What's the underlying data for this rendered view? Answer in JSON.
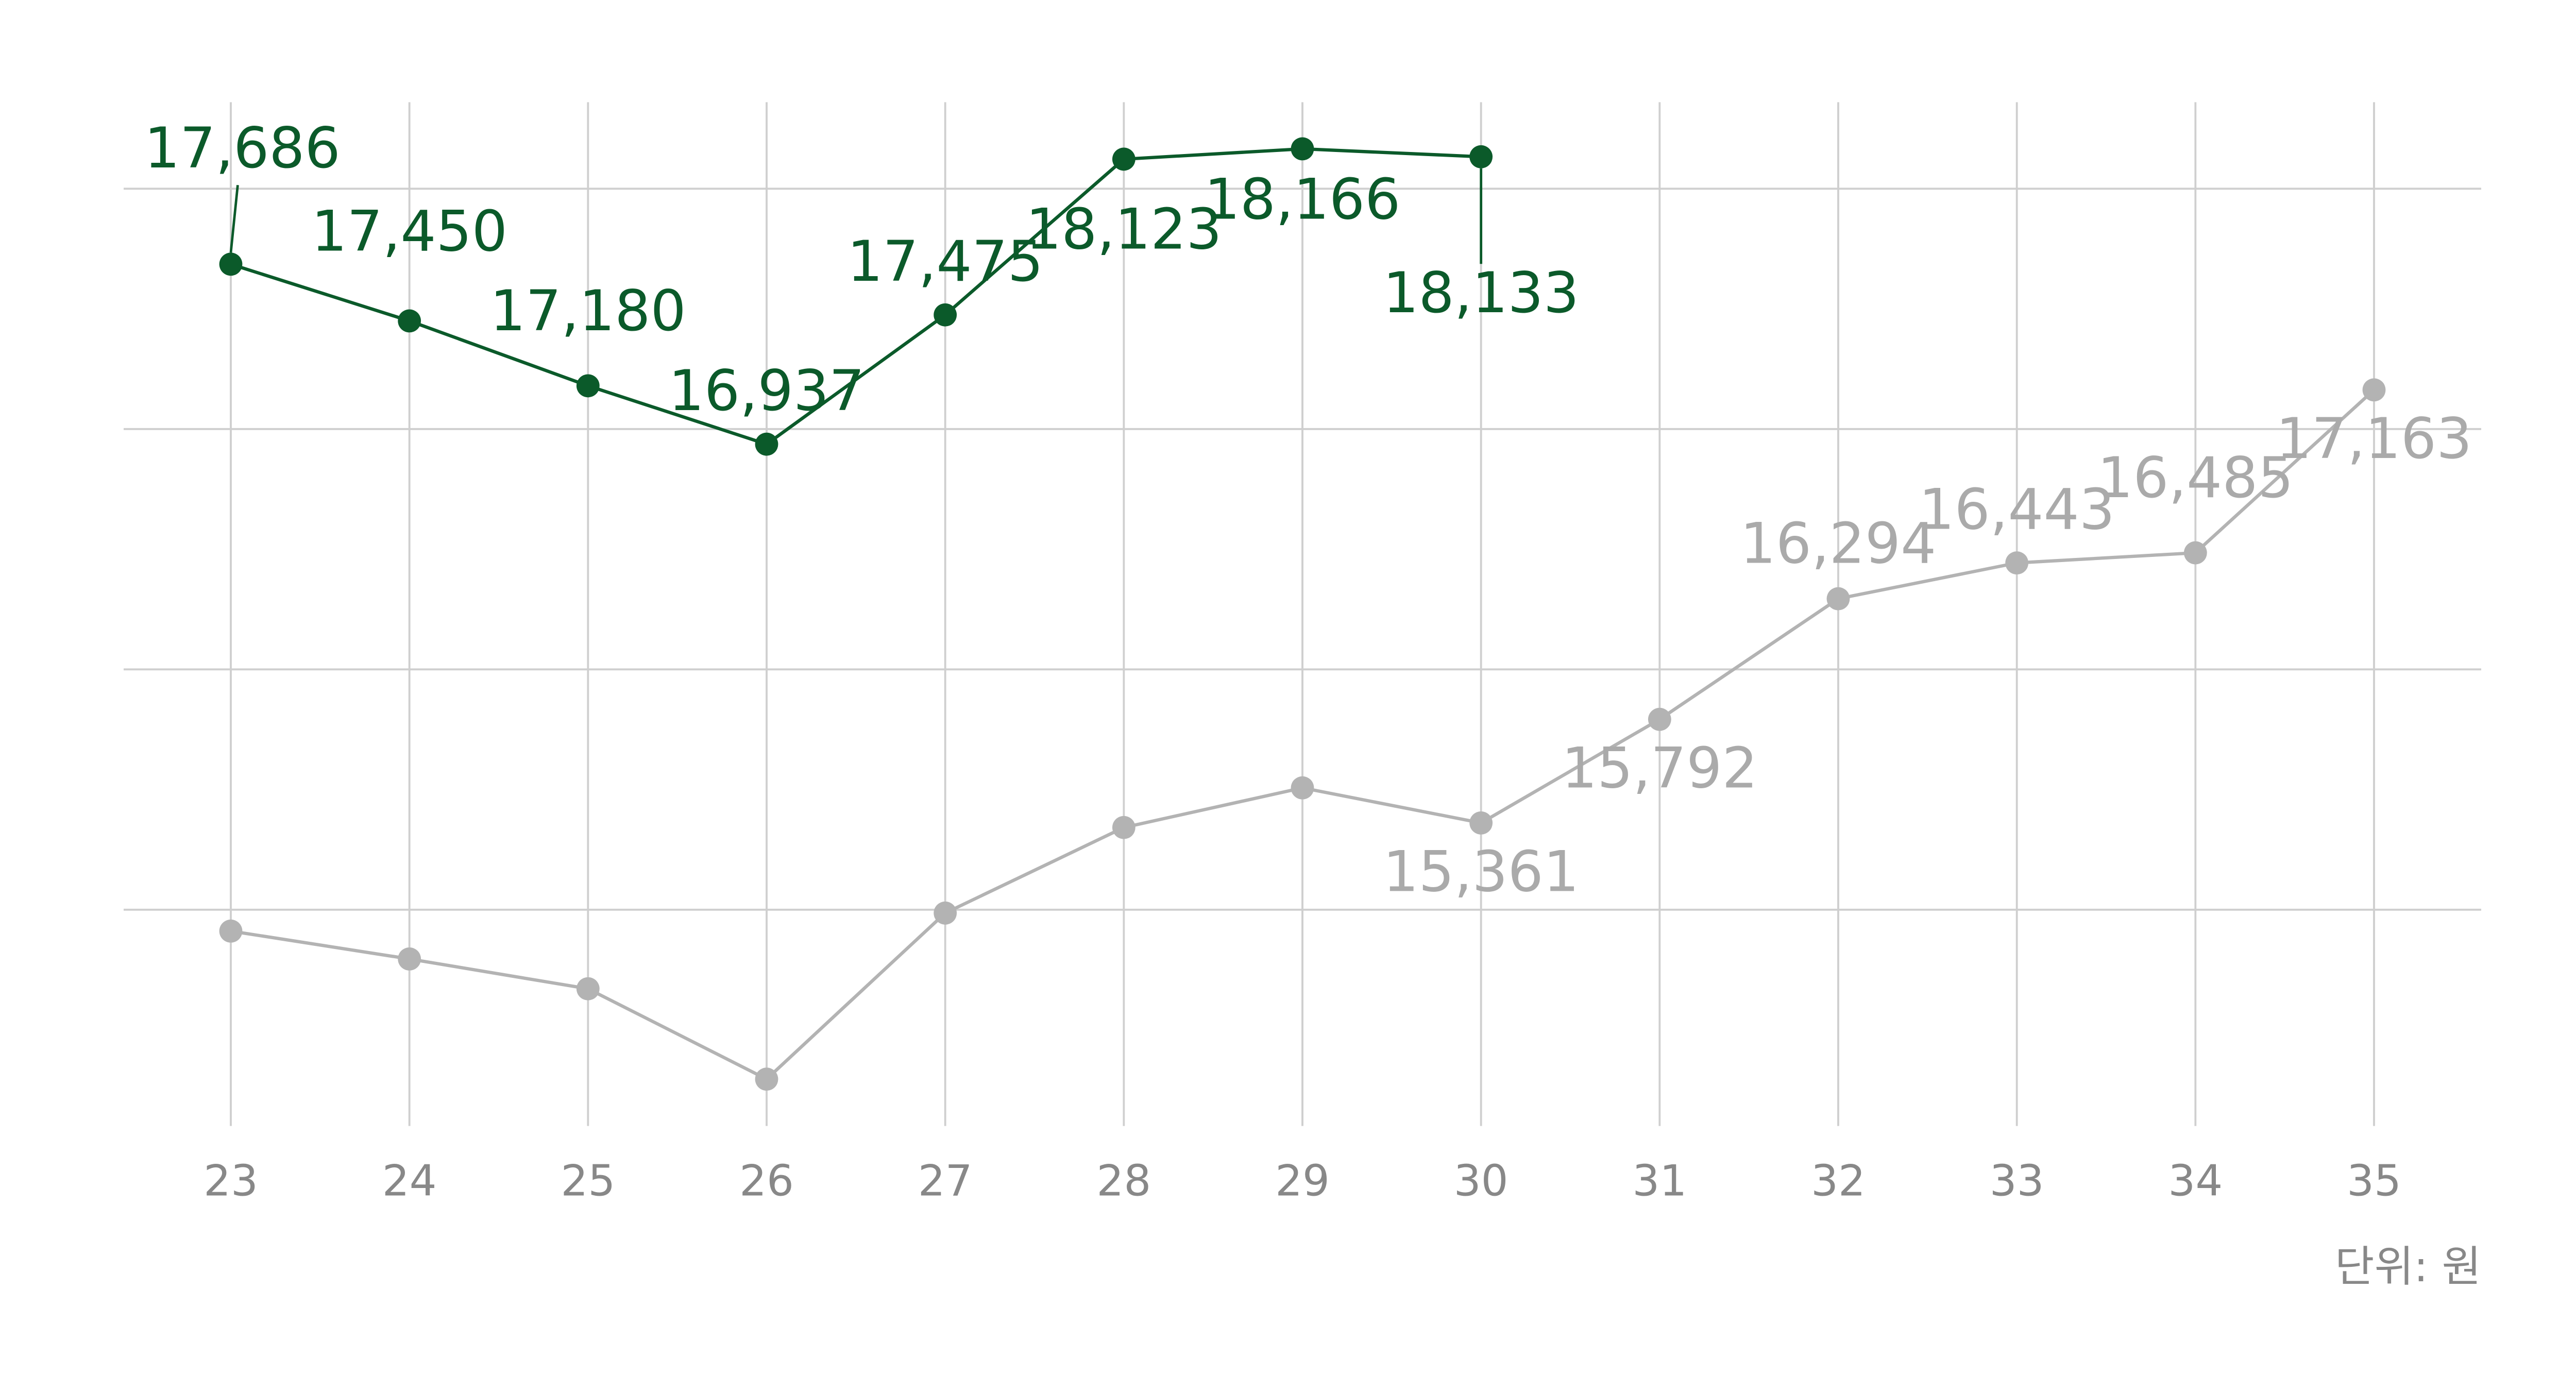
{
  "chart_data": {
    "type": "line",
    "categories": [
      "23",
      "24",
      "25",
      "26",
      "27",
      "28",
      "29",
      "30",
      "31",
      "32",
      "33",
      "34",
      "35"
    ],
    "series": [
      {
        "name": null,
        "color": "#b3b3b3",
        "values": [
          14911,
          14795,
          14671,
          14295,
          14986,
          15342,
          15507,
          15361,
          15792,
          16294,
          16443,
          16485,
          17163
        ],
        "value_labels": [
          null,
          null,
          null,
          null,
          null,
          null,
          null,
          "15,361",
          "15,792",
          "16,294",
          "16,443",
          "16,485",
          "17,163"
        ]
      },
      {
        "name": null,
        "color": "#0b5a2a",
        "values": [
          17686,
          17450,
          17180,
          16937,
          17475,
          18123,
          18166,
          18133,
          null,
          null,
          null,
          null,
          null
        ],
        "value_labels": [
          "17,686",
          "17,450",
          "17,180",
          "16,937",
          "17,475",
          "18,123",
          "18,166",
          "18,133",
          null,
          null,
          null,
          null,
          null
        ]
      }
    ],
    "ylim": [
      14100,
      18360
    ],
    "yticks": [
      15000,
      16000,
      17000,
      18000
    ],
    "grid": true,
    "unit_label": "단위: 원"
  }
}
